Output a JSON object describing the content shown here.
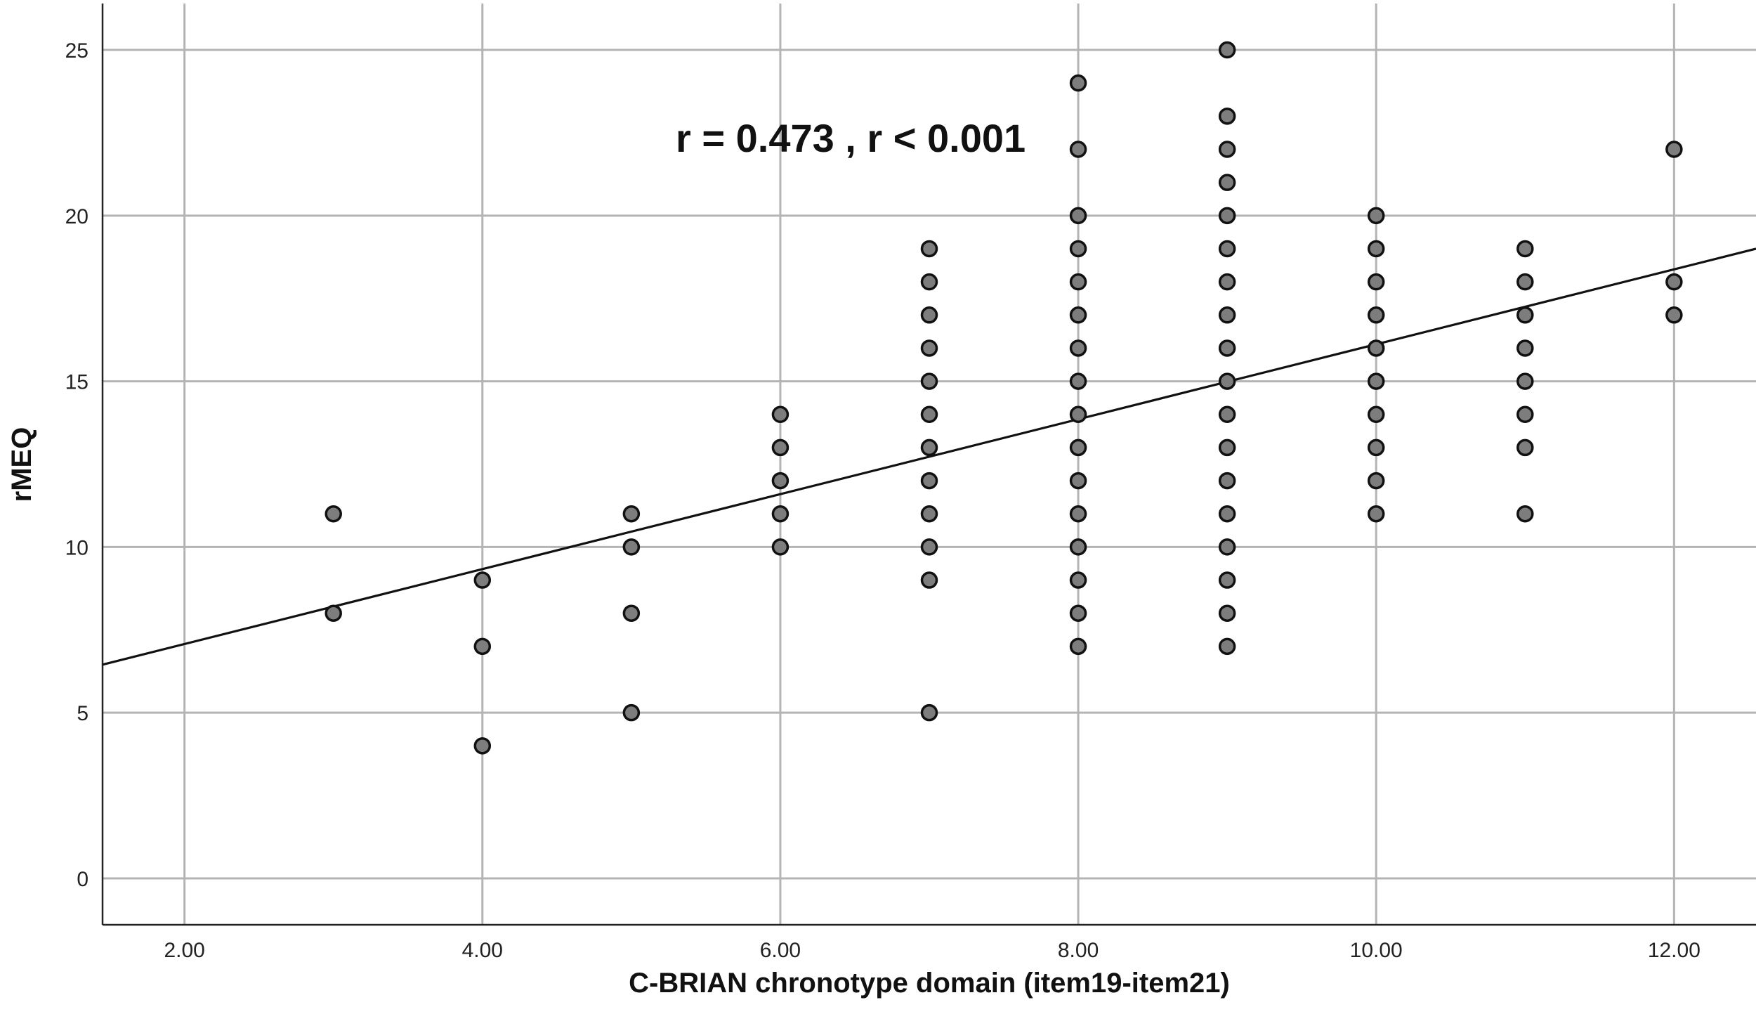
{
  "chart_data": {
    "type": "scatter",
    "xlabel": "C-BRIAN chronotype domain (item19-item21)",
    "ylabel": "rMEQ",
    "xlim": [
      1.45,
      12.55
    ],
    "ylim": [
      -1.4,
      26.4
    ],
    "x_ticks": [
      2,
      4,
      6,
      8,
      10,
      12
    ],
    "x_tick_labels": [
      "2.00",
      "4.00",
      "6.00",
      "8.00",
      "10.00",
      "12.00"
    ],
    "y_ticks": [
      0,
      5,
      10,
      15,
      20,
      25
    ],
    "y_tick_labels": [
      "0",
      "5",
      "10",
      "15",
      "20",
      "25"
    ],
    "grid": true,
    "annotation": "r = 0.473 , r < 0.001",
    "colors": {
      "point_fill": "#7d7d7d",
      "point_edge": "#111111",
      "grid": "#b4b4b4",
      "fit_line": "#111111"
    },
    "fit_line": {
      "x": [
        1.45,
        12.55
      ],
      "y": [
        6.45,
        19.0
      ]
    },
    "points": [
      [
        3,
        8
      ],
      [
        3,
        11
      ],
      [
        4,
        4
      ],
      [
        4,
        7
      ],
      [
        4,
        9
      ],
      [
        5,
        5
      ],
      [
        5,
        8
      ],
      [
        5,
        10
      ],
      [
        5,
        11
      ],
      [
        6,
        10
      ],
      [
        6,
        11
      ],
      [
        6,
        12
      ],
      [
        6,
        13
      ],
      [
        6,
        14
      ],
      [
        7,
        5
      ],
      [
        7,
        9
      ],
      [
        7,
        10
      ],
      [
        7,
        11
      ],
      [
        7,
        12
      ],
      [
        7,
        13
      ],
      [
        7,
        14
      ],
      [
        7,
        15
      ],
      [
        7,
        16
      ],
      [
        7,
        17
      ],
      [
        7,
        18
      ],
      [
        7,
        19
      ],
      [
        8,
        7
      ],
      [
        8,
        8
      ],
      [
        8,
        9
      ],
      [
        8,
        10
      ],
      [
        8,
        11
      ],
      [
        8,
        12
      ],
      [
        8,
        13
      ],
      [
        8,
        14
      ],
      [
        8,
        15
      ],
      [
        8,
        16
      ],
      [
        8,
        17
      ],
      [
        8,
        18
      ],
      [
        8,
        19
      ],
      [
        8,
        20
      ],
      [
        8,
        22
      ],
      [
        8,
        24
      ],
      [
        9,
        7
      ],
      [
        9,
        8
      ],
      [
        9,
        9
      ],
      [
        9,
        10
      ],
      [
        9,
        11
      ],
      [
        9,
        12
      ],
      [
        9,
        13
      ],
      [
        9,
        14
      ],
      [
        9,
        15
      ],
      [
        9,
        16
      ],
      [
        9,
        17
      ],
      [
        9,
        18
      ],
      [
        9,
        19
      ],
      [
        9,
        20
      ],
      [
        9,
        21
      ],
      [
        9,
        22
      ],
      [
        9,
        23
      ],
      [
        9,
        25
      ],
      [
        10,
        11
      ],
      [
        10,
        12
      ],
      [
        10,
        13
      ],
      [
        10,
        14
      ],
      [
        10,
        15
      ],
      [
        10,
        16
      ],
      [
        10,
        17
      ],
      [
        10,
        18
      ],
      [
        10,
        19
      ],
      [
        10,
        20
      ],
      [
        11,
        11
      ],
      [
        11,
        13
      ],
      [
        11,
        14
      ],
      [
        11,
        15
      ],
      [
        11,
        16
      ],
      [
        11,
        17
      ],
      [
        11,
        18
      ],
      [
        11,
        19
      ],
      [
        12,
        17
      ],
      [
        12,
        18
      ],
      [
        12,
        22
      ]
    ]
  }
}
